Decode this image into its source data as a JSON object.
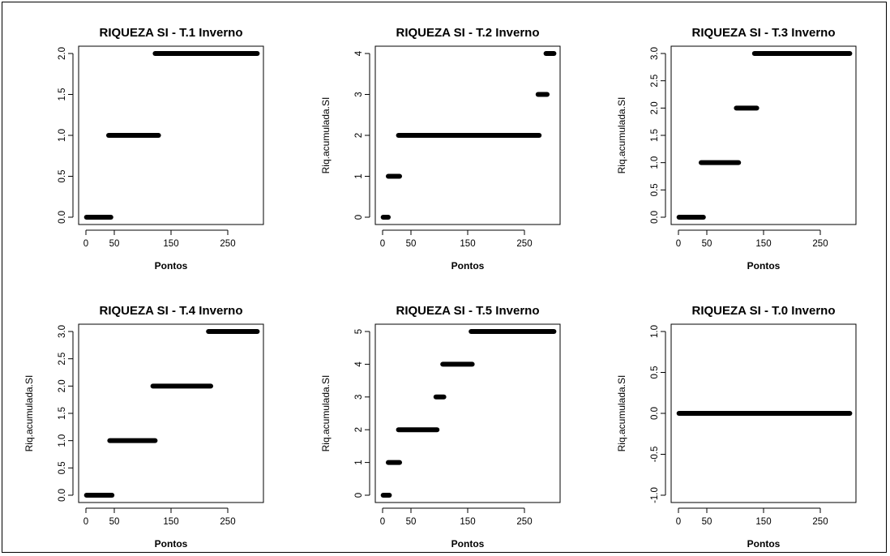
{
  "chart_data": [
    {
      "type": "scatter",
      "title": "RIQUEZA SI - T.1 Inverno",
      "xlabel": "Pontos",
      "ylabel": "",
      "xlim": [
        0,
        300
      ],
      "ylim": [
        0,
        2
      ],
      "xticks": [
        0,
        50,
        150,
        250
      ],
      "xtick_labels": [
        "0",
        "50",
        "150",
        "250"
      ],
      "yticks": [
        0,
        0.5,
        1,
        1.5,
        2
      ],
      "ytick_labels": [
        "0.0",
        "0.5",
        "1.0",
        "1.5",
        "2.0"
      ],
      "series": [
        {
          "segments": [
            {
              "x": [
                1,
                44
              ],
              "y": 0
            },
            {
              "x": [
                40,
                128
              ],
              "y": 1
            },
            {
              "x": [
                122,
                302
              ],
              "y": 2
            }
          ]
        }
      ]
    },
    {
      "type": "scatter",
      "title": "RIQUEZA SI - T.2 Inverno",
      "xlabel": "Pontos",
      "ylabel": "Riq.acumulada.SI",
      "xlim": [
        0,
        300
      ],
      "ylim": [
        0,
        4
      ],
      "xticks": [
        0,
        50,
        150,
        250
      ],
      "xtick_labels": [
        "0",
        "50",
        "150",
        "250"
      ],
      "yticks": [
        0,
        1,
        2,
        3,
        4
      ],
      "ytick_labels": [
        "0",
        "1",
        "2",
        "3",
        "4"
      ],
      "series": [
        {
          "segments": [
            {
              "x": [
                1,
                10
              ],
              "y": 0
            },
            {
              "x": [
                10,
                30
              ],
              "y": 1
            },
            {
              "x": [
                28,
                276
              ],
              "y": 2
            },
            {
              "x": [
                274,
                290
              ],
              "y": 3
            },
            {
              "x": [
                288,
                302
              ],
              "y": 4
            }
          ]
        }
      ]
    },
    {
      "type": "scatter",
      "title": "RIQUEZA SI - T.3 Inverno",
      "xlabel": "Pontos",
      "ylabel": "Riq.acumulada.SI",
      "xlim": [
        0,
        300
      ],
      "ylim": [
        0,
        3
      ],
      "xticks": [
        0,
        50,
        150,
        250
      ],
      "xtick_labels": [
        "0",
        "50",
        "150",
        "250"
      ],
      "yticks": [
        0,
        0.5,
        1,
        1.5,
        2,
        2.5,
        3
      ],
      "ytick_labels": [
        "0.0",
        "0.5",
        "1.0",
        "1.5",
        "2.0",
        "2.5",
        "3.0"
      ],
      "series": [
        {
          "segments": [
            {
              "x": [
                1,
                44
              ],
              "y": 0
            },
            {
              "x": [
                40,
                106
              ],
              "y": 1
            },
            {
              "x": [
                102,
                138
              ],
              "y": 2
            },
            {
              "x": [
                134,
                302
              ],
              "y": 3
            }
          ]
        }
      ]
    },
    {
      "type": "scatter",
      "title": "RIQUEZA SI - T.4 Inverno",
      "xlabel": "Pontos",
      "ylabel": "Riq.acumulada.SI",
      "xlim": [
        0,
        300
      ],
      "ylim": [
        0,
        3
      ],
      "xticks": [
        0,
        50,
        150,
        250
      ],
      "xtick_labels": [
        "0",
        "50",
        "150",
        "250"
      ],
      "yticks": [
        0,
        0.5,
        1,
        1.5,
        2,
        2.5,
        3
      ],
      "ytick_labels": [
        "0.0",
        "0.5",
        "1.0",
        "1.5",
        "2.0",
        "2.5",
        "3.0"
      ],
      "series": [
        {
          "segments": [
            {
              "x": [
                1,
                46
              ],
              "y": 0
            },
            {
              "x": [
                42,
                122
              ],
              "y": 1
            },
            {
              "x": [
                118,
                220
              ],
              "y": 2
            },
            {
              "x": [
                216,
                302
              ],
              "y": 3
            }
          ]
        }
      ]
    },
    {
      "type": "scatter",
      "title": "RIQUEZA SI - T.5 Inverno",
      "xlabel": "Pontos",
      "ylabel": "Riq.acumulada.SI",
      "xlim": [
        0,
        300
      ],
      "ylim": [
        0,
        5
      ],
      "xticks": [
        0,
        50,
        150,
        250
      ],
      "xtick_labels": [
        "0",
        "50",
        "150",
        "250"
      ],
      "yticks": [
        0,
        1,
        2,
        3,
        4,
        5
      ],
      "ytick_labels": [
        "0",
        "1",
        "2",
        "3",
        "4",
        "5"
      ],
      "series": [
        {
          "segments": [
            {
              "x": [
                1,
                12
              ],
              "y": 0
            },
            {
              "x": [
                10,
                30
              ],
              "y": 1
            },
            {
              "x": [
                28,
                96
              ],
              "y": 2
            },
            {
              "x": [
                94,
                108
              ],
              "y": 3
            },
            {
              "x": [
                106,
                158
              ],
              "y": 4
            },
            {
              "x": [
                156,
                302
              ],
              "y": 5
            }
          ]
        }
      ]
    },
    {
      "type": "scatter",
      "title": "RIQUEZA SI - T.0 Inverno",
      "xlabel": "Pontos",
      "ylabel": "Riq.acumulada.SI",
      "xlim": [
        0,
        300
      ],
      "ylim": [
        -1,
        1
      ],
      "xticks": [
        0,
        50,
        150,
        250
      ],
      "xtick_labels": [
        "0",
        "50",
        "150",
        "250"
      ],
      "yticks": [
        -1,
        -0.5,
        0,
        0.5,
        1
      ],
      "ytick_labels": [
        "-1.0",
        "-0.5",
        "0.0",
        "0.5",
        "1.0"
      ],
      "series": [
        {
          "segments": [
            {
              "x": [
                1,
                302
              ],
              "y": 0
            }
          ]
        }
      ]
    }
  ]
}
